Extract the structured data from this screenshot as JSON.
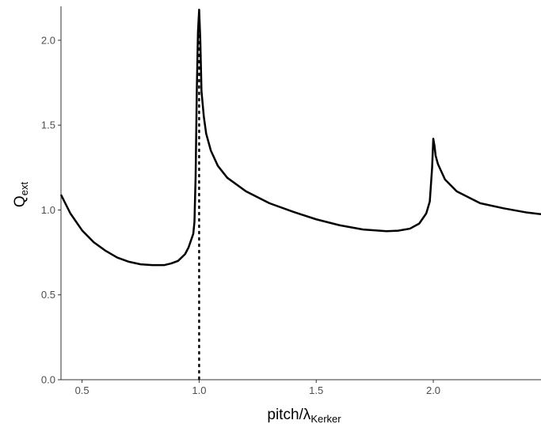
{
  "chart_data": {
    "type": "line",
    "title": "",
    "xlabel": {
      "main": "pitch/λ",
      "subscript": "Kerker"
    },
    "ylabel": {
      "main": "Q",
      "subscript": "ext"
    },
    "xlim": [
      0.41,
      2.46
    ],
    "ylim": [
      0,
      2.2
    ],
    "xticks": [
      0.5,
      1.0,
      1.5,
      2.0
    ],
    "xtick_labels": [
      "0.5",
      "1.0",
      "1.5",
      "2.0"
    ],
    "yticks": [
      0.0,
      0.5,
      1.0,
      1.5,
      2.0
    ],
    "ytick_labels": [
      "0.0",
      "0.5",
      "1.0",
      "1.5",
      "2.0"
    ],
    "grid": false,
    "series": [
      {
        "line_color": "#000000",
        "x": [
          0.41,
          0.45,
          0.5,
          0.55,
          0.6,
          0.65,
          0.7,
          0.75,
          0.8,
          0.85,
          0.88,
          0.91,
          0.94,
          0.955,
          0.965,
          0.975,
          0.98,
          0.985,
          0.99,
          0.995,
          1.0,
          1.005,
          1.01,
          1.02,
          1.03,
          1.05,
          1.08,
          1.12,
          1.2,
          1.3,
          1.4,
          1.5,
          1.6,
          1.7,
          1.8,
          1.85,
          1.9,
          1.94,
          1.97,
          1.985,
          1.995,
          2.0,
          2.005,
          2.01,
          2.02,
          2.05,
          2.1,
          2.2,
          2.3,
          2.4,
          2.46
        ],
        "y": [
          1.09,
          0.98,
          0.88,
          0.81,
          0.76,
          0.72,
          0.695,
          0.68,
          0.675,
          0.675,
          0.685,
          0.7,
          0.74,
          0.78,
          0.82,
          0.86,
          0.93,
          1.2,
          1.7,
          2.05,
          2.18,
          2.0,
          1.7,
          1.55,
          1.45,
          1.35,
          1.26,
          1.19,
          1.11,
          1.04,
          0.99,
          0.945,
          0.91,
          0.885,
          0.875,
          0.878,
          0.89,
          0.92,
          0.98,
          1.05,
          1.25,
          1.42,
          1.38,
          1.32,
          1.27,
          1.18,
          1.11,
          1.04,
          1.01,
          0.985,
          0.975
        ]
      }
    ],
    "reference_lines": [
      {
        "orientation": "vertical",
        "x": 1.0,
        "style": "dotted",
        "color": "#000000"
      }
    ]
  }
}
